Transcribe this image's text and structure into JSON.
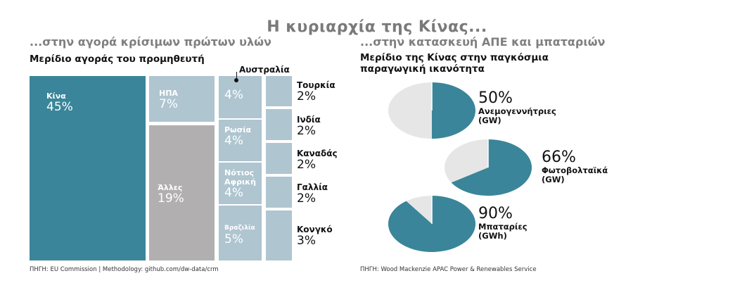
{
  "title": "Η κυριαρχία της Κίνας...",
  "left": {
    "subtitle": "...στην αγορά κρίσιμων πρώτων υλών",
    "header": "Μερίδιο αγοράς του προμηθευτή",
    "source": "ΠΗΓΗ: EU Commission | Methodology: github.com/dw-data/crm"
  },
  "right": {
    "subtitle": "...στην κατασκευή ΑΠΕ και μπαταριών",
    "header_line1": "Μερίδιο της Κίνας στην παγκόσμια",
    "header_line2": "παραγωγική ικανότητα",
    "source": "ΠΗΓΗ: Wood Mackenzie APAC Power & Renewables Service"
  },
  "colors": {
    "china": "#3a8599",
    "country": "#afc5d0",
    "others": "#b1afb0",
    "pie_rest": "#e6e6e6"
  },
  "chart_data": [
    {
      "type": "treemap",
      "title": "Μερίδιο αγοράς του προμηθευτή",
      "items": [
        {
          "label": "Κίνα",
          "value": 45,
          "text": "45%"
        },
        {
          "label": "ΗΠΑ",
          "value": 7,
          "text": "7%"
        },
        {
          "label": "Άλλες",
          "value": 19,
          "text": "19%"
        },
        {
          "label": "Αυστραλία",
          "value": 4,
          "text": "4%"
        },
        {
          "label": "Ρωσία",
          "value": 4,
          "text": "4%"
        },
        {
          "label": "Νότιος Αφρική",
          "label1": "Νότιος",
          "label2": "Αφρική",
          "value": 4,
          "text": "4%"
        },
        {
          "label": "Βραζιλία",
          "value": 5,
          "text": "5%"
        },
        {
          "label": "Τουρκία",
          "value": 2,
          "text": "2%"
        },
        {
          "label": "Ινδία",
          "value": 2,
          "text": "2%"
        },
        {
          "label": "Καναδάς",
          "value": 2,
          "text": "2%"
        },
        {
          "label": "Γαλλία",
          "value": 2,
          "text": "2%"
        },
        {
          "label": "Κονγκό",
          "value": 3,
          "text": "3%"
        }
      ]
    },
    {
      "type": "pie",
      "title": "Μερίδιο της Κίνας στην παγκόσμια παραγωγική ικανότητα",
      "items": [
        {
          "label": "Ανεμογεννήτριες",
          "unit": "(GW)",
          "value": 50,
          "text": "50%"
        },
        {
          "label": "Φωτοβολταϊκά",
          "unit": "(GW)",
          "value": 66,
          "text": "66%"
        },
        {
          "label": "Μπαταρίες",
          "unit": "(GWh)",
          "value": 90,
          "text": "90%"
        }
      ]
    }
  ]
}
